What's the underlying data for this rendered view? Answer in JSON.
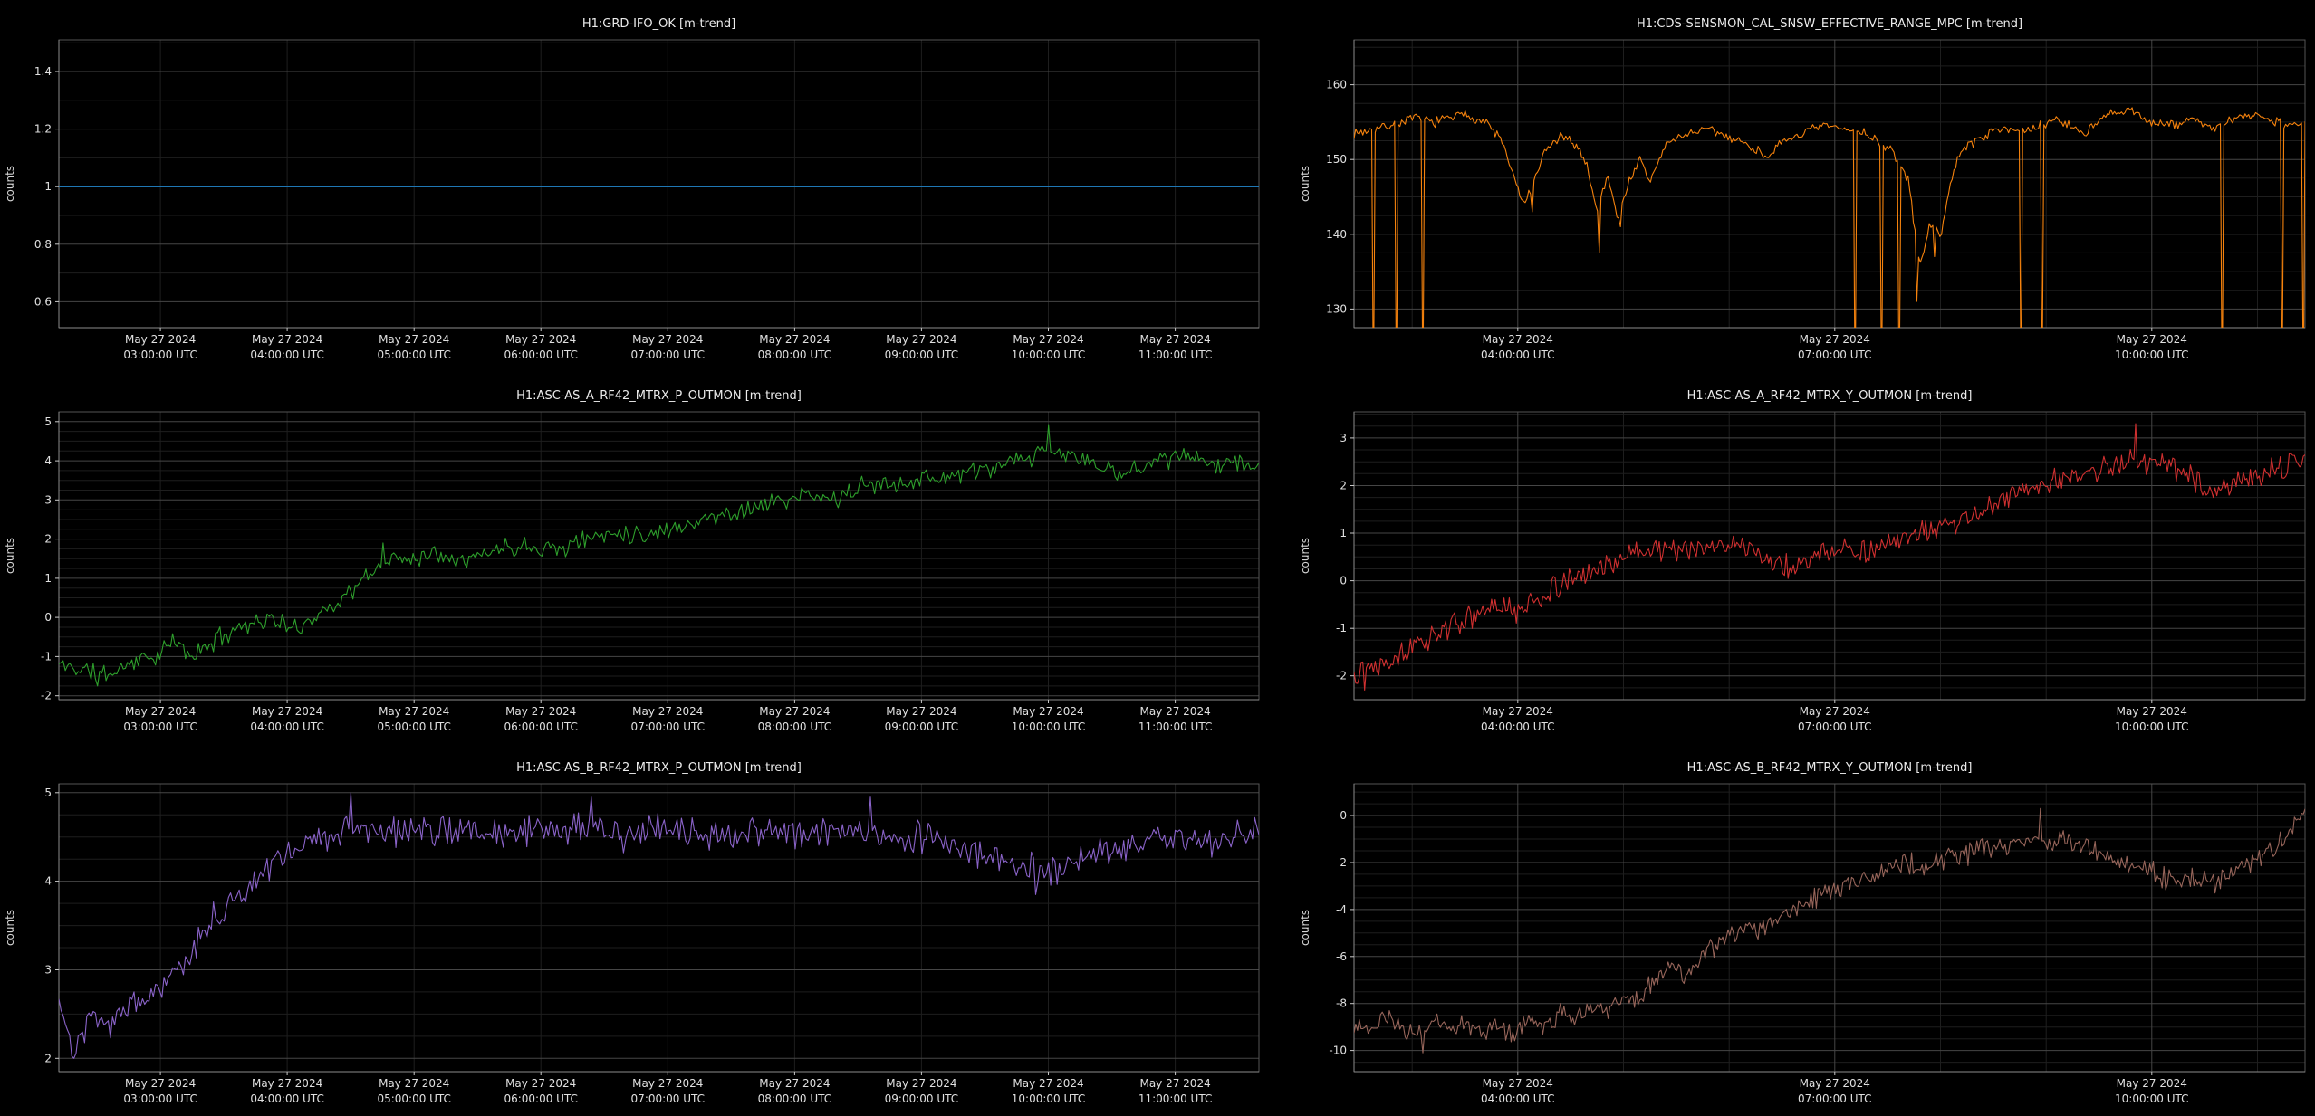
{
  "page": {
    "background": "#000000",
    "title_color": "#ececec",
    "tick_color": "#e0e0e0",
    "axis_label_color": "#d4d4d4",
    "spine_color": "#8c8c8c",
    "spine_dim_color": "#555555",
    "tick_mark_color": "#c8c8c8",
    "grid_major_color": "#464646",
    "grid_minor_color": "#1e1e1e"
  },
  "x_axes": {
    "left": {
      "lim": [
        2.2,
        11.66
      ],
      "grid_major_hours": [],
      "grid_minor_hours": [
        3,
        4,
        5,
        6,
        7,
        8,
        9,
        10,
        11
      ],
      "ticks": [
        {
          "h": 3,
          "date": "May 27 2024",
          "time": "03:00:00 UTC"
        },
        {
          "h": 4,
          "date": "May 27 2024",
          "time": "04:00:00 UTC"
        },
        {
          "h": 5,
          "date": "May 27 2024",
          "time": "05:00:00 UTC"
        },
        {
          "h": 6,
          "date": "May 27 2024",
          "time": "06:00:00 UTC"
        },
        {
          "h": 7,
          "date": "May 27 2024",
          "time": "07:00:00 UTC"
        },
        {
          "h": 8,
          "date": "May 27 2024",
          "time": "08:00:00 UTC"
        },
        {
          "h": 9,
          "date": "May 27 2024",
          "time": "09:00:00 UTC"
        },
        {
          "h": 10,
          "date": "May 27 2024",
          "time": "10:00:00 UTC"
        },
        {
          "h": 11,
          "date": "May 27 2024",
          "time": "11:00:00 UTC"
        }
      ]
    },
    "right": {
      "lim": [
        2.45,
        11.45
      ],
      "grid_major_hours": [
        4,
        7,
        10
      ],
      "grid_minor_hours": [
        3,
        5,
        6,
        8,
        9,
        11
      ],
      "ticks": [
        {
          "h": 4,
          "date": "May 27 2024",
          "time": "04:00:00 UTC"
        },
        {
          "h": 7,
          "date": "May 27 2024",
          "time": "07:00:00 UTC"
        },
        {
          "h": 10,
          "date": "May 27 2024",
          "time": "10:00:00 UTC"
        }
      ]
    }
  },
  "chart_data": [
    {
      "id": "grd-ifo-ok",
      "type": "line",
      "title": "H1:GRD-IFO_OK [m-trend]",
      "ylabel": "counts",
      "x_axis": "left",
      "x_unit": "hour of day (UTC), May 27 2024",
      "color": "#1f77b4",
      "line_width": 1.6,
      "ylim": [
        0.51,
        1.51
      ],
      "yticks": [
        0.6,
        0.8,
        1,
        1.2,
        1.4
      ],
      "y_minor_step": 0.1,
      "n_samples": 2,
      "seed": 1,
      "noise": 0,
      "trend": [
        [
          2.2,
          1
        ],
        [
          11.66,
          1
        ]
      ],
      "spikes": []
    },
    {
      "id": "sensmon-effective-range",
      "type": "line",
      "title": "H1:CDS-SENSMON_CAL_SNSW_EFFECTIVE_RANGE_MPC [m-trend]",
      "ylabel": "counts",
      "x_axis": "right",
      "x_unit": "hour of day (UTC), May 27 2024",
      "color": "#f5820d",
      "line_width": 1.1,
      "ylim": [
        127.5,
        166
      ],
      "yticks": [
        130,
        140,
        150,
        160
      ],
      "y_minor_step": 2.5,
      "n_samples": 540,
      "seed": 7,
      "noise": 0.8,
      "trend": [
        [
          2.45,
          153.5
        ],
        [
          2.7,
          154.2
        ],
        [
          3.0,
          155.5
        ],
        [
          3.2,
          155
        ],
        [
          3.5,
          156
        ],
        [
          3.7,
          155
        ],
        [
          3.85,
          152.5
        ],
        [
          3.95,
          148
        ],
        [
          4.05,
          144
        ],
        [
          4.15,
          146.5
        ],
        [
          4.25,
          151
        ],
        [
          4.4,
          153
        ],
        [
          4.55,
          152
        ],
        [
          4.65,
          149.5
        ],
        [
          4.75,
          143
        ],
        [
          4.85,
          148
        ],
        [
          4.95,
          142
        ],
        [
          5.05,
          147
        ],
        [
          5.15,
          150
        ],
        [
          5.25,
          147
        ],
        [
          5.4,
          152
        ],
        [
          5.6,
          153.5
        ],
        [
          5.8,
          154
        ],
        [
          6.1,
          152.5
        ],
        [
          6.35,
          150.5
        ],
        [
          6.6,
          153
        ],
        [
          6.9,
          154.5
        ],
        [
          7.1,
          154
        ],
        [
          7.3,
          153.5
        ],
        [
          7.55,
          151
        ],
        [
          7.7,
          147
        ],
        [
          7.8,
          136
        ],
        [
          7.9,
          141
        ],
        [
          8.0,
          140
        ],
        [
          8.1,
          147
        ],
        [
          8.2,
          151.5
        ],
        [
          8.4,
          153
        ],
        [
          8.6,
          154.5
        ],
        [
          8.8,
          153.5
        ],
        [
          9.1,
          155.5
        ],
        [
          9.35,
          153.5
        ],
        [
          9.6,
          156
        ],
        [
          9.8,
          156.5
        ],
        [
          10.0,
          155
        ],
        [
          10.2,
          154.5
        ],
        [
          10.4,
          155.5
        ],
        [
          10.6,
          154
        ],
        [
          10.8,
          155.5
        ],
        [
          11.0,
          156
        ],
        [
          11.2,
          155
        ],
        [
          11.45,
          154.5
        ]
      ],
      "spikes": [
        [
          2.64,
          118
        ],
        [
          2.85,
          118
        ],
        [
          3.1,
          118
        ],
        [
          4.13,
          143
        ],
        [
          4.77,
          137.5
        ],
        [
          4.97,
          141
        ],
        [
          7.19,
          118
        ],
        [
          7.44,
          118
        ],
        [
          7.61,
          118
        ],
        [
          7.77,
          131
        ],
        [
          7.94,
          137
        ],
        [
          8.76,
          118
        ],
        [
          8.96,
          118
        ],
        [
          10.67,
          118
        ],
        [
          11.24,
          118
        ],
        [
          11.43,
          118
        ]
      ]
    },
    {
      "id": "asc-as-a-rf42-p",
      "type": "line",
      "title": "H1:ASC-AS_A_RF42_MTRX_P_OUTMON [m-trend]",
      "ylabel": "counts",
      "x_axis": "left",
      "x_unit": "hour of day (UTC), May 27 2024",
      "color": "#2ea02c",
      "line_width": 1.1,
      "ylim": [
        -2.1,
        5.25
      ],
      "yticks": [
        -2,
        -1,
        0,
        1,
        2,
        3,
        4,
        5
      ],
      "y_minor_step": 0.25,
      "n_samples": 560,
      "seed": 11,
      "noise": 0.3,
      "trend": [
        [
          2.2,
          -1.2
        ],
        [
          2.4,
          -1.35
        ],
        [
          2.6,
          -1.45
        ],
        [
          2.8,
          -1.1
        ],
        [
          3.0,
          -0.95
        ],
        [
          3.1,
          -0.6
        ],
        [
          3.25,
          -1.0
        ],
        [
          3.45,
          -0.55
        ],
        [
          3.6,
          -0.25
        ],
        [
          3.75,
          -0.1
        ],
        [
          3.9,
          -0.05
        ],
        [
          4.05,
          -0.35
        ],
        [
          4.2,
          0.0
        ],
        [
          4.35,
          0.3
        ],
        [
          4.5,
          0.65
        ],
        [
          4.65,
          1.1
        ],
        [
          4.8,
          1.45
        ],
        [
          5.0,
          1.55
        ],
        [
          5.2,
          1.65
        ],
        [
          5.45,
          1.5
        ],
        [
          5.7,
          1.8
        ],
        [
          5.95,
          1.85
        ],
        [
          6.15,
          1.75
        ],
        [
          6.35,
          2.0
        ],
        [
          6.6,
          2.2
        ],
        [
          6.85,
          2.1
        ],
        [
          7.1,
          2.35
        ],
        [
          7.35,
          2.55
        ],
        [
          7.6,
          2.75
        ],
        [
          7.85,
          2.95
        ],
        [
          8.1,
          3.1
        ],
        [
          8.3,
          3.0
        ],
        [
          8.55,
          3.35
        ],
        [
          8.8,
          3.45
        ],
        [
          9.05,
          3.55
        ],
        [
          9.3,
          3.65
        ],
        [
          9.55,
          3.8
        ],
        [
          9.8,
          4.0
        ],
        [
          10.0,
          4.25
        ],
        [
          10.2,
          4.1
        ],
        [
          10.4,
          3.9
        ],
        [
          10.55,
          3.6
        ],
        [
          10.75,
          3.95
        ],
        [
          11.0,
          4.1
        ],
        [
          11.2,
          4.0
        ],
        [
          11.45,
          3.95
        ],
        [
          11.66,
          3.9
        ]
      ],
      "spikes": [
        [
          2.5,
          -1.75
        ],
        [
          4.75,
          1.9
        ],
        [
          10.0,
          4.9
        ]
      ]
    },
    {
      "id": "asc-as-a-rf42-y",
      "type": "line",
      "title": "H1:ASC-AS_A_RF42_MTRX_Y_OUTMON [m-trend]",
      "ylabel": "counts",
      "x_axis": "right",
      "x_unit": "hour of day (UTC), May 27 2024",
      "color": "#d03030",
      "line_width": 1.1,
      "ylim": [
        -2.5,
        3.55
      ],
      "yticks": [
        -2,
        -1,
        0,
        1,
        2,
        3
      ],
      "y_minor_step": 0.25,
      "n_samples": 540,
      "seed": 13,
      "noise": 0.3,
      "trend": [
        [
          2.45,
          -1.9
        ],
        [
          2.7,
          -1.7
        ],
        [
          3.0,
          -1.45
        ],
        [
          3.2,
          -1.15
        ],
        [
          3.4,
          -0.9
        ],
        [
          3.6,
          -0.75
        ],
        [
          3.8,
          -0.55
        ],
        [
          4.0,
          -0.65
        ],
        [
          4.2,
          -0.35
        ],
        [
          4.45,
          -0.05
        ],
        [
          4.7,
          0.2
        ],
        [
          4.95,
          0.45
        ],
        [
          5.2,
          0.65
        ],
        [
          5.45,
          0.7
        ],
        [
          5.7,
          0.6
        ],
        [
          5.95,
          0.8
        ],
        [
          6.15,
          0.7
        ],
        [
          6.4,
          0.45
        ],
        [
          6.6,
          0.25
        ],
        [
          6.85,
          0.55
        ],
        [
          7.1,
          0.7
        ],
        [
          7.35,
          0.6
        ],
        [
          7.6,
          0.85
        ],
        [
          7.85,
          1.0
        ],
        [
          8.1,
          1.15
        ],
        [
          8.35,
          1.45
        ],
        [
          8.6,
          1.7
        ],
        [
          8.85,
          1.95
        ],
        [
          9.1,
          2.1
        ],
        [
          9.35,
          2.25
        ],
        [
          9.6,
          2.4
        ],
        [
          9.85,
          2.55
        ],
        [
          10.1,
          2.45
        ],
        [
          10.35,
          2.2
        ],
        [
          10.6,
          1.9
        ],
        [
          10.8,
          2.05
        ],
        [
          11.0,
          2.25
        ],
        [
          11.2,
          2.35
        ],
        [
          11.45,
          2.55
        ]
      ],
      "spikes": [
        [
          2.55,
          -2.3
        ],
        [
          9.85,
          3.3
        ]
      ]
    },
    {
      "id": "asc-as-b-rf42-p",
      "type": "line",
      "title": "H1:ASC-AS_B_RF42_MTRX_P_OUTMON [m-trend]",
      "ylabel": "counts",
      "x_axis": "left",
      "x_unit": "hour of day (UTC), May 27 2024",
      "color": "#8a63c9",
      "line_width": 1.1,
      "ylim": [
        1.85,
        5.1
      ],
      "yticks": [
        2,
        3,
        4,
        5
      ],
      "y_minor_step": 0.25,
      "n_samples": 560,
      "seed": 17,
      "noise": 0.22,
      "trend": [
        [
          2.2,
          2.7
        ],
        [
          2.32,
          2.05
        ],
        [
          2.45,
          2.55
        ],
        [
          2.6,
          2.35
        ],
        [
          2.75,
          2.6
        ],
        [
          2.9,
          2.7
        ],
        [
          3.05,
          2.85
        ],
        [
          3.2,
          3.15
        ],
        [
          3.35,
          3.45
        ],
        [
          3.5,
          3.7
        ],
        [
          3.65,
          3.9
        ],
        [
          3.8,
          4.1
        ],
        [
          3.95,
          4.3
        ],
        [
          4.1,
          4.4
        ],
        [
          4.3,
          4.5
        ],
        [
          4.5,
          4.6
        ],
        [
          4.7,
          4.55
        ],
        [
          4.9,
          4.5
        ],
        [
          5.1,
          4.55
        ],
        [
          5.35,
          4.6
        ],
        [
          5.6,
          4.5
        ],
        [
          5.85,
          4.55
        ],
        [
          6.1,
          4.55
        ],
        [
          6.35,
          4.6
        ],
        [
          6.6,
          4.5
        ],
        [
          6.85,
          4.55
        ],
        [
          7.1,
          4.6
        ],
        [
          7.35,
          4.5
        ],
        [
          7.6,
          4.55
        ],
        [
          7.85,
          4.5
        ],
        [
          8.1,
          4.55
        ],
        [
          8.35,
          4.6
        ],
        [
          8.6,
          4.55
        ],
        [
          8.85,
          4.5
        ],
        [
          9.1,
          4.5
        ],
        [
          9.35,
          4.4
        ],
        [
          9.6,
          4.25
        ],
        [
          9.8,
          4.15
        ],
        [
          10.0,
          4.1
        ],
        [
          10.2,
          4.25
        ],
        [
          10.45,
          4.35
        ],
        [
          10.7,
          4.45
        ],
        [
          10.95,
          4.5
        ],
        [
          11.2,
          4.45
        ],
        [
          11.45,
          4.5
        ],
        [
          11.66,
          4.55
        ]
      ],
      "spikes": [
        [
          2.32,
          2.0
        ],
        [
          4.5,
          5.0
        ],
        [
          6.4,
          4.95
        ],
        [
          8.6,
          4.95
        ],
        [
          9.9,
          3.85
        ]
      ]
    },
    {
      "id": "asc-as-b-rf42-y",
      "type": "line",
      "title": "H1:ASC-AS_B_RF42_MTRX_Y_OUTMON [m-trend]",
      "ylabel": "counts",
      "x_axis": "right",
      "x_unit": "hour of day (UTC), May 27 2024",
      "color": "#97655a",
      "line_width": 1.1,
      "ylim": [
        -10.9,
        1.35
      ],
      "yticks": [
        -10,
        -8,
        -6,
        -4,
        -2,
        0
      ],
      "y_minor_step": 0.5,
      "n_samples": 540,
      "seed": 23,
      "noise": 0.55,
      "trend": [
        [
          2.45,
          -8.8
        ],
        [
          2.6,
          -9.2
        ],
        [
          2.75,
          -8.7
        ],
        [
          2.9,
          -9.0
        ],
        [
          3.05,
          -9.3
        ],
        [
          3.2,
          -8.8
        ],
        [
          3.35,
          -9.1
        ],
        [
          3.5,
          -8.7
        ],
        [
          3.65,
          -9.2
        ],
        [
          3.8,
          -9.0
        ],
        [
          3.95,
          -9.3
        ],
        [
          4.1,
          -8.6
        ],
        [
          4.25,
          -9.0
        ],
        [
          4.4,
          -8.4
        ],
        [
          4.55,
          -8.7
        ],
        [
          4.7,
          -8.0
        ],
        [
          4.85,
          -8.3
        ],
        [
          5.0,
          -7.6
        ],
        [
          5.15,
          -7.9
        ],
        [
          5.3,
          -7.0
        ],
        [
          5.45,
          -6.4
        ],
        [
          5.6,
          -6.8
        ],
        [
          5.75,
          -6.0
        ],
        [
          5.9,
          -5.5
        ],
        [
          6.05,
          -5.0
        ],
        [
          6.2,
          -4.6
        ],
        [
          6.35,
          -4.9
        ],
        [
          6.5,
          -4.2
        ],
        [
          6.65,
          -3.8
        ],
        [
          6.8,
          -3.5
        ],
        [
          6.95,
          -3.2
        ],
        [
          7.1,
          -2.9
        ],
        [
          7.25,
          -2.7
        ],
        [
          7.4,
          -2.5
        ],
        [
          7.55,
          -2.2
        ],
        [
          7.7,
          -2.0
        ],
        [
          7.85,
          -2.3
        ],
        [
          8.0,
          -1.9
        ],
        [
          8.15,
          -1.7
        ],
        [
          8.3,
          -1.6
        ],
        [
          8.45,
          -1.4
        ],
        [
          8.6,
          -1.3
        ],
        [
          8.75,
          -1.1
        ],
        [
          8.9,
          -0.9
        ],
        [
          9.05,
          -1.3
        ],
        [
          9.2,
          -1.1
        ],
        [
          9.35,
          -1.4
        ],
        [
          9.5,
          -1.6
        ],
        [
          9.65,
          -1.8
        ],
        [
          9.8,
          -2.1
        ],
        [
          9.95,
          -2.3
        ],
        [
          10.1,
          -2.6
        ],
        [
          10.25,
          -2.8
        ],
        [
          10.4,
          -2.6
        ],
        [
          10.55,
          -2.9
        ],
        [
          10.7,
          -2.7
        ],
        [
          10.85,
          -2.3
        ],
        [
          11.0,
          -1.9
        ],
        [
          11.15,
          -1.4
        ],
        [
          11.3,
          -0.8
        ],
        [
          11.45,
          0.4
        ]
      ],
      "spikes": [
        [
          3.1,
          -10.1
        ],
        [
          8.95,
          0.3
        ]
      ]
    }
  ]
}
